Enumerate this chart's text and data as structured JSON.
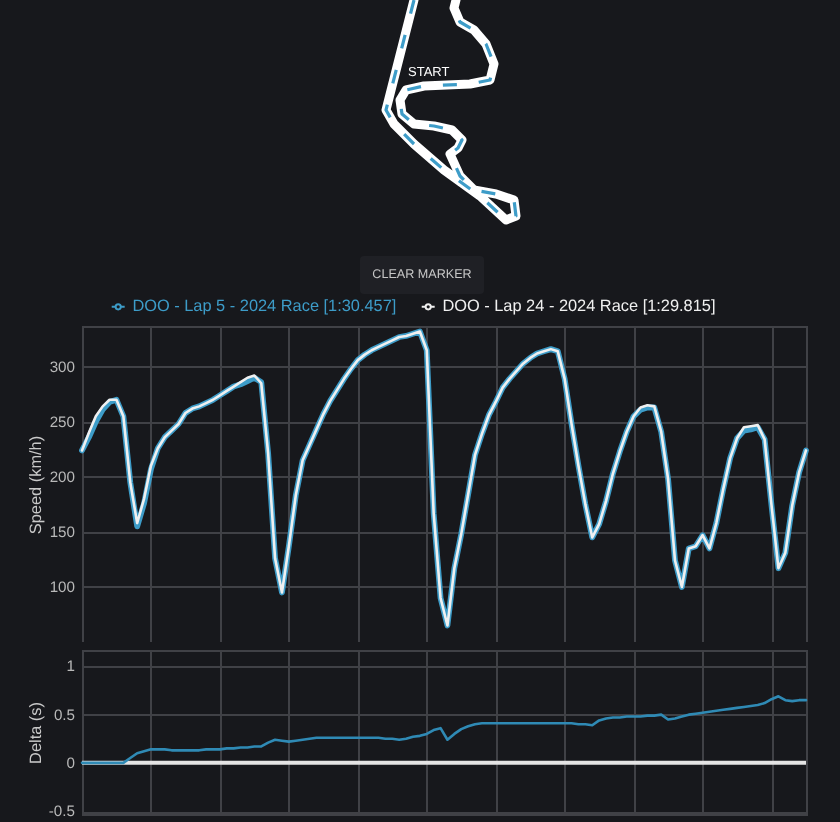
{
  "chart_data": [
    {
      "type": "line",
      "ylabel": "Speed (km/h)",
      "legend": "top",
      "grid": true,
      "tick_labels": "y",
      "ylim": [
        50,
        337
      ],
      "yticks": [
        100,
        150,
        200,
        250,
        300
      ],
      "annotations": [
        "START",
        "CLEAR MARKER"
      ],
      "categories": [
        null,
        null,
        null,
        null,
        null,
        null,
        null,
        null,
        null,
        null,
        null,
        null,
        null,
        null,
        null,
        null,
        null,
        null,
        null,
        null,
        null,
        null,
        null,
        null,
        null,
        null,
        null,
        null,
        null,
        null,
        null,
        null,
        null,
        null,
        null,
        null,
        null,
        null,
        null,
        null,
        null,
        null,
        null,
        null,
        null,
        null,
        null,
        null,
        null,
        null,
        null,
        null,
        null,
        null,
        null,
        null,
        null,
        null,
        null,
        null,
        null,
        null,
        null,
        null,
        null,
        null,
        null,
        null,
        null,
        null,
        null,
        null,
        null,
        null,
        null,
        null,
        null,
        null,
        null,
        null,
        null,
        null,
        null,
        null,
        null,
        null,
        null,
        null,
        null,
        null,
        null,
        null,
        null,
        null,
        null,
        null,
        null,
        null,
        null,
        null,
        null,
        null,
        null,
        null,
        null,
        null
      ],
      "series": [
        {
          "name": "DOO - Lap 5 - 2024 Race [1:30.457]",
          "color": "#3d9cc8",
          "values": [
            224,
            236,
            250,
            261,
            268,
            270,
            255,
            195,
            155,
            176,
            207,
            226,
            236,
            242,
            248,
            258,
            262,
            264,
            267,
            270,
            274,
            278,
            282,
            284,
            287,
            290,
            286,
            221,
            126,
            95,
            137,
            183,
            215,
            229,
            243,
            257,
            269,
            279,
            289,
            298,
            306,
            311,
            315,
            318,
            321,
            324,
            327,
            328,
            330,
            332,
            315,
            167,
            90,
            65,
            117,
            148,
            184,
            220,
            239,
            256,
            268,
            281,
            289,
            296,
            303,
            308,
            312,
            314,
            316,
            314,
            289,
            248,
            210,
            175,
            145,
            157,
            178,
            203,
            223,
            241,
            255,
            261,
            263,
            263,
            241,
            198,
            124,
            100,
            135,
            137,
            147,
            135,
            158,
            189,
            217,
            235,
            242,
            243,
            245,
            234,
            174,
            117,
            131,
            174,
            204,
            224
          ]
        },
        {
          "name": "DOO - Lap 24 - 2024 Race [1:29.815]",
          "color": "#f0f0f0",
          "values": [
            224,
            240,
            255,
            264,
            270,
            270,
            255,
            195,
            158,
            180,
            210,
            226,
            236,
            242,
            248,
            258,
            262,
            264,
            267,
            270,
            274,
            278,
            282,
            286,
            290,
            292,
            285,
            221,
            126,
            95,
            137,
            183,
            215,
            229,
            243,
            257,
            269,
            279,
            289,
            298,
            306,
            311,
            315,
            318,
            321,
            324,
            327,
            328,
            330,
            332,
            315,
            167,
            90,
            65,
            117,
            148,
            184,
            220,
            239,
            256,
            268,
            281,
            289,
            296,
            303,
            308,
            312,
            314,
            316,
            314,
            289,
            248,
            210,
            175,
            145,
            157,
            178,
            203,
            223,
            241,
            255,
            263,
            265,
            264,
            241,
            198,
            124,
            100,
            135,
            137,
            147,
            135,
            158,
            189,
            217,
            235,
            245,
            246,
            247,
            234,
            174,
            117,
            131,
            174,
            204,
            224
          ]
        }
      ]
    },
    {
      "type": "line",
      "ylabel": "Delta (s)",
      "grid": true,
      "tick_labels": "y",
      "ylim": [
        -0.53,
        1.17
      ],
      "yticks": [
        -0.5,
        0,
        0.5,
        1
      ],
      "categories": [
        null,
        null,
        null,
        null,
        null,
        null,
        null,
        null,
        null,
        null,
        null,
        null,
        null,
        null,
        null,
        null,
        null,
        null,
        null,
        null,
        null,
        null,
        null,
        null,
        null,
        null,
        null,
        null,
        null,
        null,
        null,
        null,
        null,
        null,
        null,
        null,
        null,
        null,
        null,
        null,
        null,
        null,
        null,
        null,
        null,
        null,
        null,
        null,
        null,
        null,
        null,
        null,
        null,
        null,
        null,
        null,
        null,
        null,
        null,
        null,
        null,
        null,
        null,
        null,
        null,
        null,
        null,
        null,
        null,
        null,
        null,
        null,
        null,
        null,
        null,
        null,
        null,
        null,
        null,
        null,
        null,
        null,
        null,
        null,
        null,
        null,
        null,
        null,
        null,
        null,
        null,
        null,
        null,
        null,
        null,
        null,
        null,
        null,
        null,
        null,
        null,
        null,
        null,
        null,
        null,
        null
      ],
      "ref_lines": [
        {
          "axis": "y",
          "value": 0,
          "color": "#e4e4e4"
        }
      ],
      "series": [
        {
          "color": "#2f8ab5",
          "values": [
            0,
            0,
            0,
            0,
            0,
            0,
            0,
            0.05,
            0.1,
            0.12,
            0.14,
            0.14,
            0.14,
            0.13,
            0.13,
            0.13,
            0.13,
            0.13,
            0.14,
            0.14,
            0.14,
            0.15,
            0.15,
            0.16,
            0.16,
            0.17,
            0.17,
            0.21,
            0.24,
            0.23,
            0.22,
            0.23,
            0.24,
            0.25,
            0.26,
            0.26,
            0.26,
            0.26,
            0.26,
            0.26,
            0.26,
            0.26,
            0.26,
            0.26,
            0.25,
            0.25,
            0.24,
            0.25,
            0.27,
            0.28,
            0.3,
            0.34,
            0.36,
            0.24,
            0.3,
            0.35,
            0.38,
            0.4,
            0.41,
            0.41,
            0.41,
            0.41,
            0.41,
            0.41,
            0.41,
            0.41,
            0.41,
            0.41,
            0.41,
            0.41,
            0.41,
            0.41,
            0.4,
            0.4,
            0.39,
            0.44,
            0.46,
            0.47,
            0.47,
            0.48,
            0.48,
            0.48,
            0.49,
            0.49,
            0.5,
            0.45,
            0.46,
            0.48,
            0.5,
            0.51,
            0.52,
            0.53,
            0.54,
            0.55,
            0.56,
            0.57,
            0.58,
            0.59,
            0.6,
            0.62,
            0.66,
            0.69,
            0.65,
            0.64,
            0.65,
            0.65
          ]
        }
      ]
    }
  ]
}
